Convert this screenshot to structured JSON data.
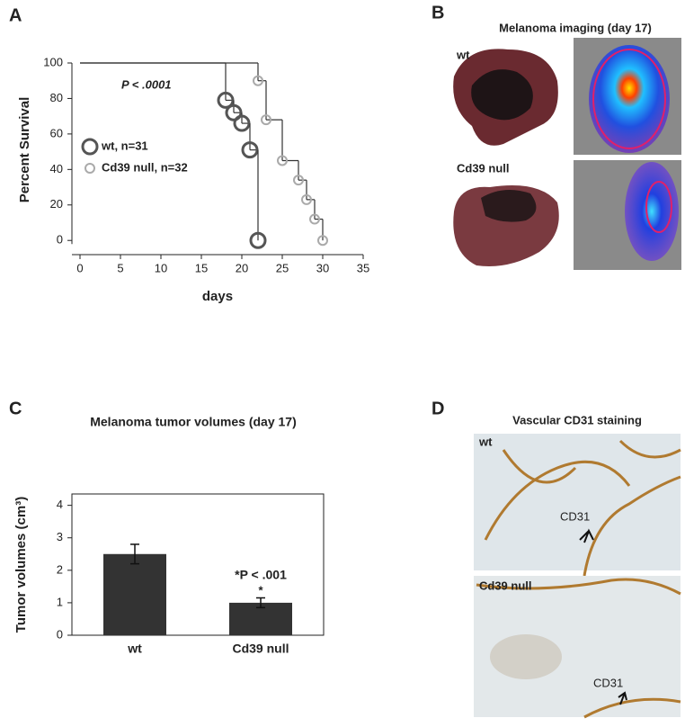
{
  "chart_data": [
    {
      "type": "survival",
      "panel": "A",
      "ylabel": "Percent Survival",
      "xlabel": "days",
      "annotation": "P < .0001",
      "xlim": [
        -1,
        35
      ],
      "xticks": [
        0,
        5,
        10,
        15,
        20,
        25,
        30,
        35
      ],
      "ylim": [
        -8,
        100
      ],
      "yticks": [
        0,
        20,
        40,
        60,
        80,
        100
      ],
      "series": [
        {
          "name": "wt, n=31",
          "color": "#555555",
          "x": [
            0,
            18,
            19,
            20,
            21,
            22
          ],
          "values": [
            100,
            79,
            72,
            66,
            51,
            0
          ]
        },
        {
          "name": "Cd39 null, n=32",
          "color": "#aaaaaa",
          "x": [
            0,
            22,
            23,
            25,
            27,
            28,
            29,
            30
          ],
          "values": [
            100,
            90,
            68,
            45,
            34,
            23,
            12,
            0
          ]
        }
      ]
    },
    {
      "type": "bar",
      "panel": "C",
      "title": "Melanoma tumor volumes (day 17)",
      "ylabel": "Tumor volumes (cm³)",
      "categories": [
        "wt",
        "Cd39 null"
      ],
      "values": [
        2.5,
        1.0
      ],
      "errors": [
        0.3,
        0.15
      ],
      "color": "#333333",
      "ylim": [
        0,
        4.35
      ],
      "yticks": [
        0,
        1,
        2,
        3,
        4
      ],
      "annotation": "*P < .001",
      "star": "*"
    }
  ],
  "imaging": {
    "panel": "B",
    "title": "Melanoma imaging (day 17)",
    "labels": [
      "wt",
      "Cd39 null"
    ]
  },
  "staining": {
    "panel": "D",
    "title": "Vascular CD31 staining",
    "labels": [
      "wt",
      "Cd39 null"
    ],
    "arrows": [
      "CD31",
      "CD31"
    ]
  }
}
